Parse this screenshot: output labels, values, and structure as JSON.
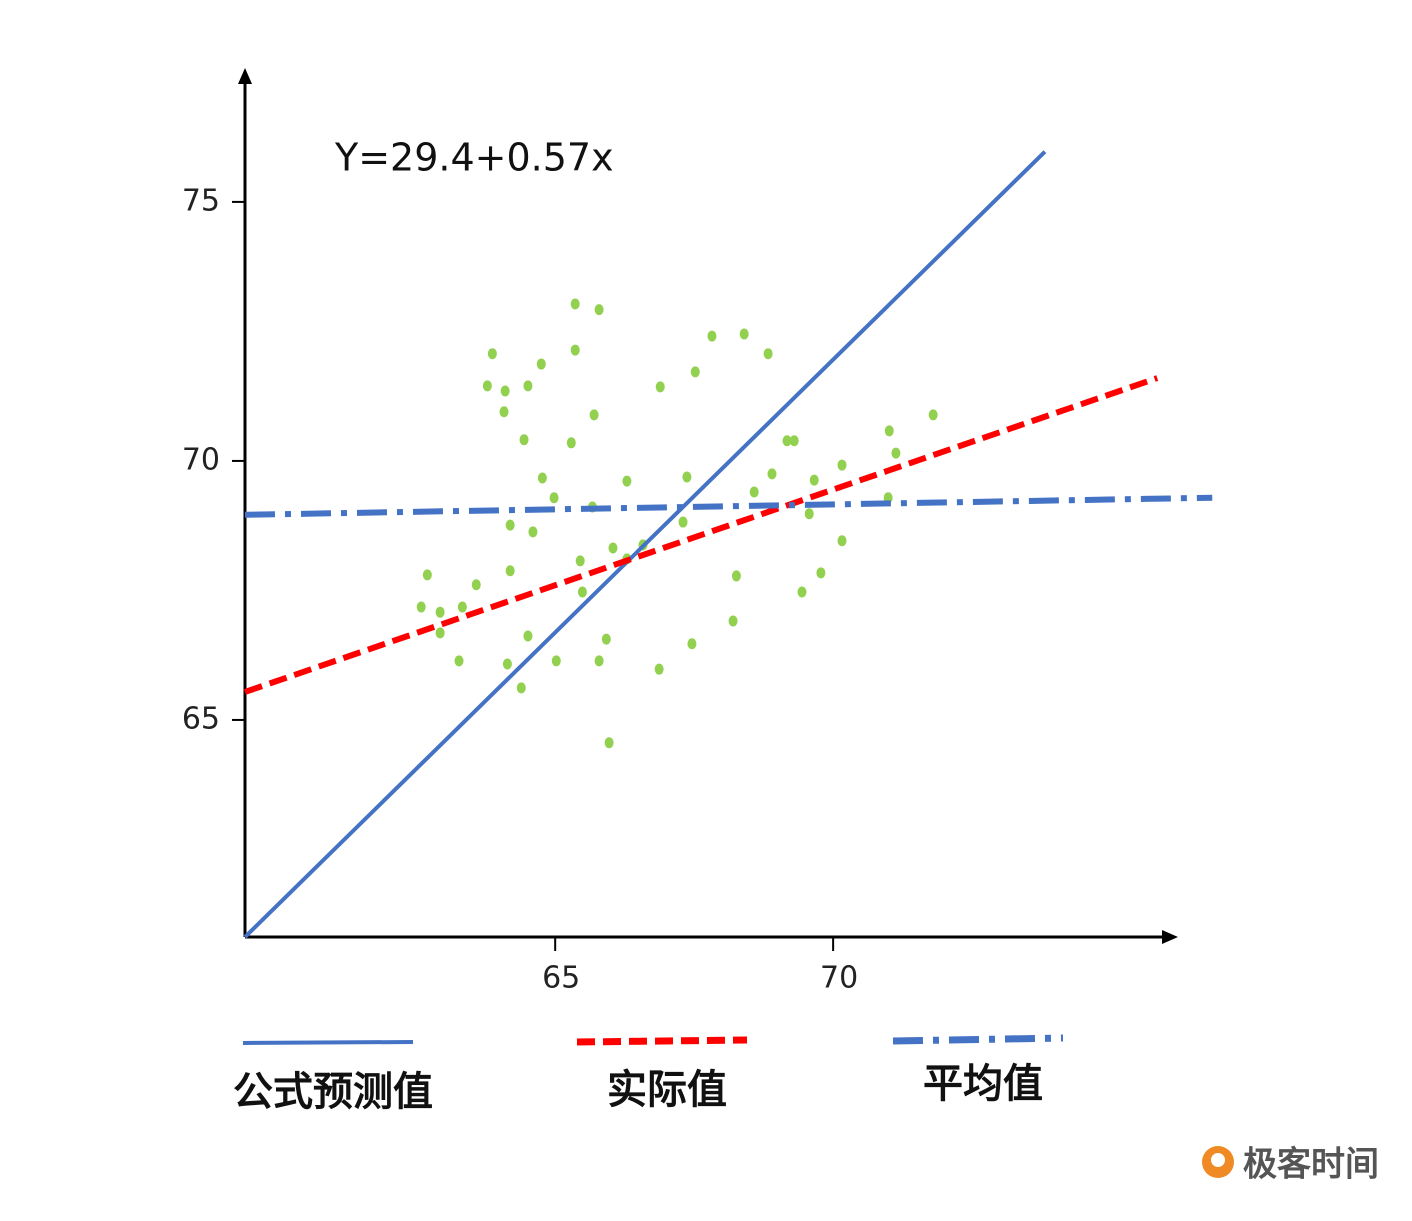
{
  "chart_data": {
    "type": "scatter",
    "annotation": "Y=29.4+0.57x",
    "xlim": [
      59.42,
      76.06
    ],
    "ylim": [
      60.81,
      77.45
    ],
    "xticks": [
      65,
      70
    ],
    "yticks": [
      65,
      70,
      75
    ],
    "points": {
      "color": "#92d050",
      "x": [
        65.36,
        65.79,
        63.87,
        65.36,
        64.75,
        63.78,
        64.1,
        64.51,
        64.08,
        65.7,
        64.44,
        65.29,
        64.77,
        64.98,
        65.67,
        64.19,
        64.6,
        66.29,
        66.89,
        67.52,
        67.82,
        68.4,
        68.83,
        67.37,
        67.3,
        66.04,
        65.45,
        65.49,
        66.29,
        66.58,
        64.19,
        62.7,
        63.58,
        62.59,
        62.93,
        63.33,
        62.93,
        64.51,
        63.27,
        64.14,
        64.39,
        65.02,
        65.79,
        65.92,
        65.97,
        66.87,
        67.46,
        68.2,
        68.26,
        68.58,
        68.9,
        69.17,
        69.3,
        69.57,
        69.66,
        70.16,
        70.16,
        69.78,
        69.44,
        71.01,
        71.13,
        70.99,
        71.8
      ],
      "y": [
        73.03,
        72.92,
        72.07,
        72.14,
        71.87,
        71.45,
        71.35,
        71.45,
        70.95,
        70.89,
        70.41,
        70.35,
        69.67,
        69.29,
        69.11,
        68.76,
        68.63,
        69.61,
        71.43,
        71.72,
        72.41,
        72.45,
        72.07,
        69.69,
        68.82,
        68.32,
        68.07,
        67.47,
        68.11,
        68.38,
        67.88,
        67.8,
        67.61,
        67.18,
        67.08,
        67.18,
        66.68,
        66.62,
        66.14,
        66.08,
        65.62,
        66.14,
        66.14,
        66.56,
        64.56,
        65.98,
        66.47,
        66.91,
        67.78,
        69.4,
        69.75,
        70.39,
        70.39,
        68.98,
        69.63,
        69.92,
        68.46,
        67.84,
        67.47,
        70.58,
        70.15,
        69.29,
        70.89
      ]
    },
    "series": [
      {
        "name": "公式预测值",
        "color": "#4472c4",
        "style": "solid",
        "x": [
          59.42,
          73.81
        ],
        "values": [
          60.81,
          75.97
        ]
      },
      {
        "name": "实际值",
        "color": "#ff0000",
        "style": "dashed",
        "x": [
          59.42,
          75.83
        ],
        "values": [
          65.54,
          71.6
        ]
      },
      {
        "name": "平均值",
        "color": "#4472c4",
        "style": "dashdot",
        "x": [
          59.42,
          76.82
        ],
        "values": [
          68.96,
          69.29
        ]
      }
    ]
  },
  "watermark": "极客时间"
}
